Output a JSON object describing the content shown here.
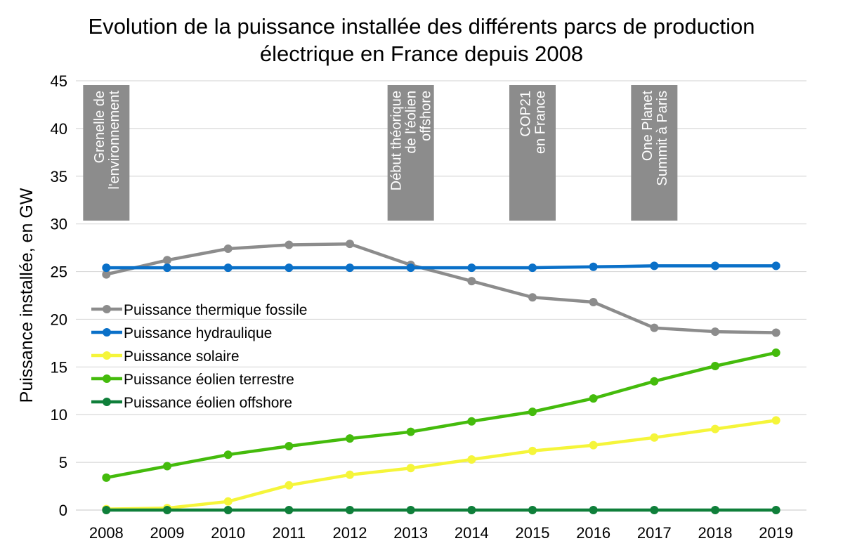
{
  "chart_data": {
    "type": "line",
    "title": "Evolution de la puissance installée des différents parcs de production électrique en France depuis 2008",
    "xlabel": "",
    "ylabel": "Puissance installée, en GW",
    "categories": [
      "2008",
      "2009",
      "2010",
      "2011",
      "2012",
      "2013",
      "2014",
      "2015",
      "2016",
      "2017",
      "2018",
      "2019"
    ],
    "ylim": [
      0,
      45
    ],
    "yticks": [
      0,
      5,
      10,
      15,
      20,
      25,
      30,
      35,
      40,
      45
    ],
    "grid": true,
    "legend_position": "middle-left",
    "series": [
      {
        "name": "Puissance thermique fossile",
        "color": "#8c8c8c",
        "values": [
          24.7,
          26.2,
          27.4,
          27.8,
          27.9,
          25.7,
          24.0,
          22.3,
          21.8,
          19.1,
          18.7,
          18.6
        ]
      },
      {
        "name": "Puissance hydraulique",
        "color": "#0a70c8",
        "values": [
          25.4,
          25.4,
          25.4,
          25.4,
          25.4,
          25.4,
          25.4,
          25.4,
          25.5,
          25.6,
          25.6,
          25.6
        ]
      },
      {
        "name": "Puissance solaire",
        "color": "#f5f53a",
        "values": [
          0.1,
          0.2,
          0.9,
          2.6,
          3.7,
          4.4,
          5.3,
          6.2,
          6.8,
          7.6,
          8.5,
          9.4
        ]
      },
      {
        "name": "Puissance éolien terrestre",
        "color": "#44bb0c",
        "values": [
          3.4,
          4.6,
          5.8,
          6.7,
          7.5,
          8.2,
          9.3,
          10.3,
          11.7,
          13.5,
          15.1,
          16.5
        ]
      },
      {
        "name": "Puissance éolien offshore",
        "color": "#0f7f3a",
        "values": [
          0,
          0,
          0,
          0,
          0,
          0,
          0,
          0,
          0,
          0,
          0,
          0
        ]
      }
    ],
    "annotations": [
      {
        "category": "2008",
        "lines": [
          "Grenelle de",
          "l'environnement"
        ]
      },
      {
        "category": "2013",
        "lines": [
          "Début théorique",
          "de l'éolien",
          "offshore"
        ]
      },
      {
        "category": "2015",
        "lines": [
          "COP21",
          "en France"
        ]
      },
      {
        "category": "2017",
        "lines": [
          "One Planet",
          "Summit à Paris"
        ]
      }
    ]
  }
}
